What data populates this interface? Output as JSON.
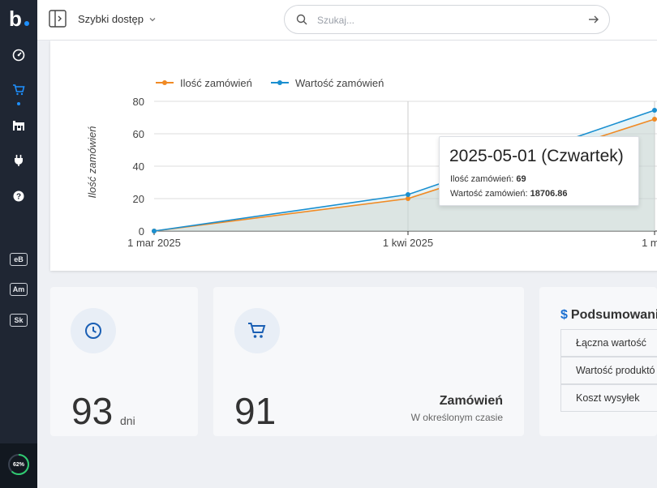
{
  "sidebar": {
    "logo": "b.",
    "badges": [
      "eB",
      "Am",
      "Sk"
    ],
    "progress": "62%",
    "progress_value": 0.62
  },
  "topbar": {
    "quick_access": "Szybki dostęp",
    "search_placeholder": "Szukaj..."
  },
  "chart_data": {
    "type": "line",
    "x": [
      "2025-03-01",
      "2025-04-01",
      "2025-05-01"
    ],
    "x_tick_labels": [
      "1 mar 2025",
      "1 kwi 2025",
      "1 maj"
    ],
    "y_ticks": [
      0,
      20,
      40,
      60,
      80
    ],
    "ylim": [
      0,
      80
    ],
    "ylabel": "Ilość zamówień",
    "legend_position": "top-left",
    "series": [
      {
        "name": "Ilość zamówień",
        "color": "#f08a24",
        "values": [
          0,
          20,
          69
        ]
      },
      {
        "name": "Wartość zamówień",
        "color": "#1a8fd0",
        "values": [
          0,
          22.5,
          74.5
        ]
      }
    ]
  },
  "tooltip": {
    "title": "2025-05-01 (Czwartek)",
    "line1_label": "Ilość zamówień:",
    "line1_value": "69",
    "line2_label": "Wartość zamówień:",
    "line2_value": "18706.86"
  },
  "stats": {
    "days": {
      "value": "93",
      "unit": "dni"
    },
    "orders": {
      "value": "91",
      "title": "Zamówień",
      "subtitle": "W określonym czasie"
    }
  },
  "summary": {
    "title": "Podsumowani",
    "rows": [
      "Łączna wartość",
      "Wartość produktó",
      "Koszt wysyłek"
    ]
  }
}
